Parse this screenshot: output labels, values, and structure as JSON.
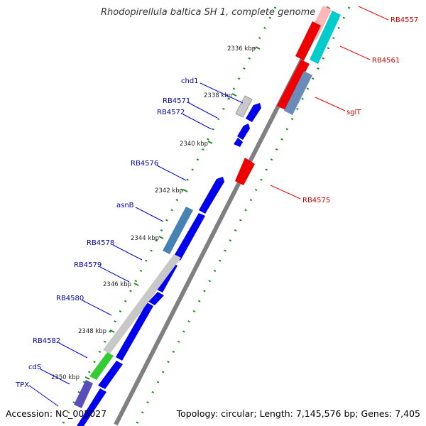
{
  "title": "Rhodopirellula baltica SH 1, complete genome",
  "footer": {
    "accession": "Accession: NC_005027",
    "summary": "Topology: circular; Length: 7,145,576 bp; Genes: 7,405"
  },
  "colors": {
    "forward": "#0000ee",
    "reverse": "#ee0000",
    "forward_label": "#0000aa",
    "reverse_label": "#cc0000",
    "backbone": "#808080",
    "tick": "#228b22"
  },
  "ticks": [
    {
      "label": "2336 kbp"
    },
    {
      "label": "2338 kbp"
    },
    {
      "label": "2340 kbp"
    },
    {
      "label": "2342 kbp"
    },
    {
      "label": "2344 kbp"
    },
    {
      "label": "2346 kbp"
    },
    {
      "label": "2348 kbp"
    },
    {
      "label": "2350 kbp"
    }
  ],
  "forward_labels": [
    "chd1",
    "RB4571",
    "RB4572",
    "RB4576",
    "asnB",
    "RB4578",
    "RB4579",
    "RB4580",
    "RB4582",
    "cdS",
    "TPX"
  ],
  "reverse_labels": [
    "RB4557",
    "RB4561",
    "sglT",
    "RB4575"
  ]
}
